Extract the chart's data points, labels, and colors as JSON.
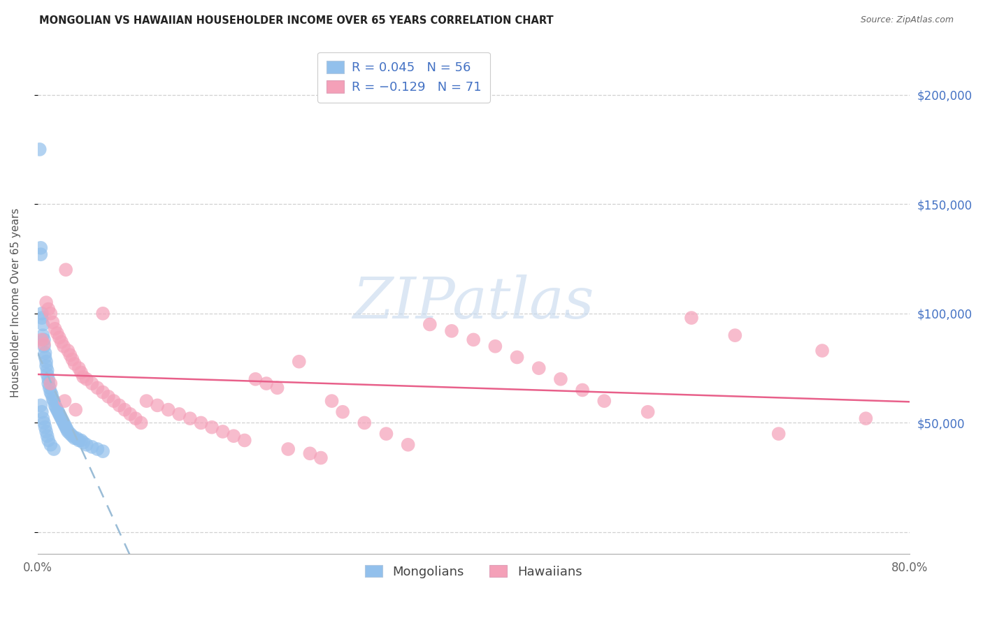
{
  "title": "MONGOLIAN VS HAWAIIAN HOUSEHOLDER INCOME OVER 65 YEARS CORRELATION CHART",
  "source": "Source: ZipAtlas.com",
  "ylabel": "Householder Income Over 65 years",
  "xlim": [
    0.0,
    0.8
  ],
  "ylim": [
    -10000,
    220000
  ],
  "yticks": [
    0,
    50000,
    100000,
    150000,
    200000
  ],
  "ytick_labels_right": [
    "",
    "$50,000",
    "$100,000",
    "$150,000",
    "$200,000"
  ],
  "mongolian_R": 0.045,
  "mongolian_N": 56,
  "hawaiian_R": -0.129,
  "hawaiian_N": 71,
  "mongolian_color": "#92c0ec",
  "hawaiian_color": "#f4a0b8",
  "trend_mongolian_color": "#9abcd6",
  "trend_hawaiian_color": "#e8608a",
  "watermark_color": "#c5d8ee",
  "mongolian_x": [
    0.002,
    0.003,
    0.003,
    0.004,
    0.004,
    0.005,
    0.005,
    0.006,
    0.006,
    0.007,
    0.007,
    0.008,
    0.008,
    0.009,
    0.009,
    0.01,
    0.01,
    0.011,
    0.012,
    0.013,
    0.014,
    0.015,
    0.016,
    0.017,
    0.018,
    0.019,
    0.02,
    0.021,
    0.022,
    0.023,
    0.024,
    0.025,
    0.026,
    0.027,
    0.028,
    0.03,
    0.032,
    0.034,
    0.036,
    0.038,
    0.04,
    0.042,
    0.045,
    0.05,
    0.055,
    0.06,
    0.003,
    0.004,
    0.005,
    0.006,
    0.007,
    0.008,
    0.009,
    0.01,
    0.012,
    0.015
  ],
  "mongolian_y": [
    175000,
    130000,
    127000,
    100000,
    98000,
    95000,
    90000,
    88000,
    85000,
    82000,
    80000,
    78000,
    76000,
    74000,
    72000,
    70000,
    68000,
    66000,
    64000,
    63000,
    61000,
    60000,
    58000,
    57000,
    56000,
    55000,
    54000,
    53000,
    52000,
    51000,
    50000,
    49000,
    48000,
    47000,
    46000,
    45000,
    44000,
    43000,
    43000,
    42000,
    42000,
    41000,
    40000,
    39000,
    38000,
    37000,
    58000,
    55000,
    52000,
    50000,
    48000,
    46000,
    44000,
    42000,
    40000,
    38000
  ],
  "hawaiian_x": [
    0.004,
    0.006,
    0.008,
    0.01,
    0.012,
    0.014,
    0.016,
    0.018,
    0.02,
    0.022,
    0.024,
    0.026,
    0.028,
    0.03,
    0.032,
    0.034,
    0.038,
    0.04,
    0.042,
    0.045,
    0.05,
    0.055,
    0.06,
    0.065,
    0.07,
    0.075,
    0.08,
    0.085,
    0.09,
    0.095,
    0.1,
    0.11,
    0.12,
    0.13,
    0.14,
    0.15,
    0.16,
    0.17,
    0.18,
    0.19,
    0.2,
    0.21,
    0.22,
    0.23,
    0.24,
    0.25,
    0.26,
    0.27,
    0.28,
    0.3,
    0.32,
    0.34,
    0.36,
    0.38,
    0.4,
    0.42,
    0.44,
    0.46,
    0.48,
    0.5,
    0.52,
    0.56,
    0.6,
    0.64,
    0.68,
    0.72,
    0.76,
    0.012,
    0.025,
    0.035,
    0.06
  ],
  "hawaiian_y": [
    88000,
    86000,
    105000,
    102000,
    100000,
    96000,
    93000,
    91000,
    89000,
    87000,
    85000,
    120000,
    83000,
    81000,
    79000,
    77000,
    75000,
    73000,
    71000,
    70000,
    68000,
    66000,
    64000,
    62000,
    60000,
    58000,
    56000,
    54000,
    52000,
    50000,
    60000,
    58000,
    56000,
    54000,
    52000,
    50000,
    48000,
    46000,
    44000,
    42000,
    70000,
    68000,
    66000,
    38000,
    78000,
    36000,
    34000,
    60000,
    55000,
    50000,
    45000,
    40000,
    95000,
    92000,
    88000,
    85000,
    80000,
    75000,
    70000,
    65000,
    60000,
    55000,
    98000,
    90000,
    45000,
    83000,
    52000,
    68000,
    60000,
    56000,
    100000
  ]
}
